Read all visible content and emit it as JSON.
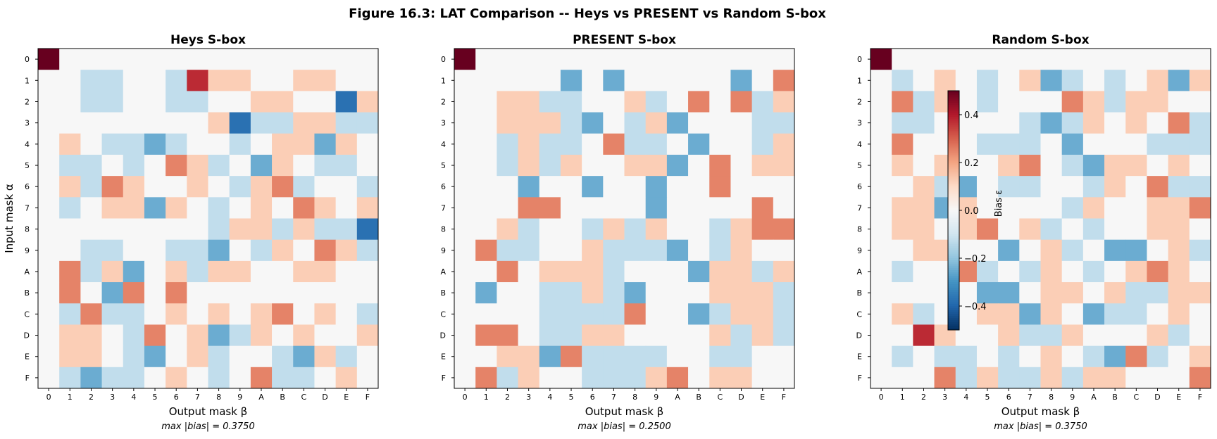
{
  "suptitle": "Figure 16.3: LAT Comparison -- Heys vs PRESENT vs Random S-box",
  "colorbar": {
    "label": "Bias ε",
    "ticks": [
      0.4,
      0.2,
      0.0,
      -0.2,
      -0.4
    ],
    "tick_labels": [
      "0.4",
      "0.2",
      "0.0",
      "−0.2",
      "−0.4"
    ],
    "range": [
      -0.5,
      0.5
    ],
    "colormap": "RdBu_r"
  },
  "chart_data": [
    {
      "type": "heatmap",
      "title": "Heys S-box",
      "xlabel": "Output mask β",
      "ylabel": "Input mask α",
      "annotation": "max |bias| = 0.3750",
      "x_labels": [
        "0",
        "1",
        "2",
        "3",
        "4",
        "5",
        "6",
        "7",
        "8",
        "9",
        "A",
        "B",
        "C",
        "D",
        "E",
        "F"
      ],
      "y_labels": [
        "0",
        "1",
        "2",
        "3",
        "4",
        "5",
        "6",
        "7",
        "8",
        "9",
        "A",
        "B",
        "C",
        "D",
        "E",
        "F"
      ],
      "vrange": [
        -0.5,
        0.5
      ],
      "z": [
        [
          0.5,
          0,
          0,
          0,
          0,
          0,
          0,
          0,
          0,
          0,
          0,
          0,
          0,
          0,
          0,
          0
        ],
        [
          0,
          0,
          -0.125,
          -0.125,
          0,
          0,
          -0.125,
          0.375,
          0.125,
          0.125,
          0,
          0,
          0.125,
          0.125,
          0,
          0
        ],
        [
          0,
          0,
          -0.125,
          -0.125,
          0,
          0,
          -0.125,
          -0.125,
          0,
          0,
          0.125,
          0.125,
          0,
          0,
          -0.375,
          0.125
        ],
        [
          0,
          0,
          0,
          0,
          0,
          0,
          0,
          0,
          0.125,
          -0.375,
          -0.125,
          -0.125,
          0.125,
          0.125,
          -0.125,
          -0.125
        ],
        [
          0,
          0.125,
          0,
          -0.125,
          -0.125,
          -0.25,
          -0.125,
          0,
          0,
          -0.125,
          0,
          0.125,
          0.125,
          -0.25,
          0.125,
          0
        ],
        [
          0,
          -0.125,
          -0.125,
          0,
          -0.125,
          0,
          0.25,
          0.125,
          -0.125,
          0,
          -0.25,
          0.125,
          0,
          -0.125,
          -0.125,
          0
        ],
        [
          0,
          0.125,
          -0.125,
          0.25,
          0.125,
          0,
          0,
          0.125,
          0,
          -0.125,
          0.125,
          0.25,
          -0.125,
          0,
          0,
          -0.125
        ],
        [
          0,
          -0.125,
          0,
          0.125,
          0.125,
          -0.25,
          0.125,
          0,
          -0.125,
          0,
          0.125,
          0,
          0.25,
          0.125,
          0,
          0.125
        ],
        [
          0,
          0,
          0,
          0,
          0,
          0,
          0,
          0,
          -0.125,
          0.125,
          0.125,
          -0.125,
          0.125,
          -0.125,
          -0.125,
          -0.375
        ],
        [
          0,
          0,
          -0.125,
          -0.125,
          0,
          0,
          -0.125,
          -0.125,
          -0.25,
          0,
          -0.125,
          0.125,
          0,
          0.25,
          0.125,
          -0.125
        ],
        [
          0,
          0.25,
          -0.125,
          0.125,
          -0.25,
          0,
          0.125,
          -0.125,
          0.125,
          0.125,
          0,
          0,
          0.125,
          0.125,
          0,
          0
        ],
        [
          0,
          0.25,
          0,
          -0.25,
          0.25,
          0,
          0.25,
          0,
          0,
          0,
          0,
          0,
          0,
          0,
          0,
          0
        ],
        [
          0,
          -0.125,
          0.25,
          -0.125,
          -0.125,
          0,
          0.125,
          0,
          0.125,
          0,
          0.125,
          0.25,
          0,
          0.125,
          0,
          -0.125
        ],
        [
          0,
          0.125,
          0.125,
          0,
          -0.125,
          0.25,
          0,
          0.125,
          -0.25,
          -0.125,
          0.125,
          0,
          0.125,
          0,
          0,
          0.125
        ],
        [
          0,
          0.125,
          0.125,
          0,
          -0.125,
          -0.25,
          0,
          0.125,
          -0.125,
          0,
          0,
          -0.125,
          -0.25,
          0.125,
          -0.125,
          0
        ],
        [
          0,
          -0.125,
          -0.25,
          -0.125,
          -0.125,
          0,
          0.125,
          0,
          -0.125,
          0,
          0.25,
          -0.125,
          -0.125,
          0,
          0.125,
          0
        ]
      ]
    },
    {
      "type": "heatmap",
      "title": "PRESENT S-box",
      "xlabel": "Output mask β",
      "ylabel": "",
      "annotation": "max |bias| = 0.2500",
      "x_labels": [
        "0",
        "1",
        "2",
        "3",
        "4",
        "5",
        "6",
        "7",
        "8",
        "9",
        "A",
        "B",
        "C",
        "D",
        "E",
        "F"
      ],
      "y_labels": [
        "0",
        "1",
        "2",
        "3",
        "4",
        "5",
        "6",
        "7",
        "8",
        "9",
        "A",
        "B",
        "C",
        "D",
        "E",
        "F"
      ],
      "vrange": [
        -0.5,
        0.5
      ],
      "z": [
        [
          0.5,
          0,
          0,
          0,
          0,
          0,
          0,
          0,
          0,
          0,
          0,
          0,
          0,
          0,
          0,
          0
        ],
        [
          0,
          0,
          0,
          0,
          0,
          -0.25,
          0,
          -0.25,
          0,
          0,
          0,
          0,
          0,
          -0.25,
          0,
          0.25
        ],
        [
          0,
          0,
          0.125,
          0.125,
          -0.125,
          -0.125,
          0,
          0,
          0.125,
          -0.125,
          0,
          0.25,
          0,
          0.25,
          -0.125,
          0.125
        ],
        [
          0,
          0,
          0.125,
          0.125,
          0.125,
          -0.125,
          -0.25,
          0,
          -0.125,
          0.125,
          -0.25,
          0,
          0,
          0,
          -0.125,
          -0.125
        ],
        [
          0,
          0,
          -0.125,
          0.125,
          -0.125,
          -0.125,
          0,
          0.25,
          -0.125,
          -0.125,
          0,
          -0.25,
          0,
          0,
          -0.125,
          0.125
        ],
        [
          0,
          0,
          -0.125,
          0.125,
          -0.125,
          0.125,
          0,
          0,
          0.125,
          0.125,
          -0.25,
          0,
          0.25,
          0,
          0.125,
          0.125
        ],
        [
          0,
          0,
          0,
          -0.25,
          0,
          0,
          -0.25,
          0,
          0,
          -0.25,
          0,
          0,
          0.25,
          0,
          0,
          0
        ],
        [
          0,
          0,
          0,
          0.25,
          0.25,
          0,
          0,
          0,
          0,
          -0.25,
          0,
          0,
          0,
          0,
          0.25,
          0
        ],
        [
          0,
          0,
          0.125,
          -0.125,
          0,
          0,
          -0.125,
          0.125,
          -0.125,
          0.125,
          0,
          0,
          -0.125,
          0.125,
          0.25,
          0.25
        ],
        [
          0,
          0.25,
          -0.125,
          -0.125,
          0,
          0,
          0.125,
          -0.125,
          -0.125,
          -0.125,
          -0.25,
          0,
          -0.125,
          0.125,
          0,
          0
        ],
        [
          0,
          0,
          0.25,
          0,
          0.125,
          0.125,
          0.125,
          -0.125,
          0,
          0,
          0,
          -0.25,
          0.125,
          0.125,
          -0.125,
          0.125
        ],
        [
          0,
          -0.25,
          0,
          0,
          -0.125,
          -0.125,
          0.125,
          -0.125,
          -0.25,
          0,
          0,
          0,
          0.125,
          0.125,
          0.125,
          -0.125
        ],
        [
          0,
          0,
          0,
          0,
          -0.125,
          -0.125,
          -0.125,
          -0.125,
          0.25,
          0,
          0,
          -0.25,
          -0.125,
          0.125,
          0.125,
          -0.125
        ],
        [
          0,
          0.25,
          0.25,
          0,
          -0.125,
          -0.125,
          0.125,
          0.125,
          0,
          0,
          0,
          0,
          0.125,
          -0.125,
          0.125,
          -0.125
        ],
        [
          0,
          0,
          0.125,
          0.125,
          -0.25,
          0.25,
          -0.125,
          -0.125,
          -0.125,
          -0.125,
          0,
          0,
          -0.125,
          -0.125,
          0,
          0
        ],
        [
          0,
          0.25,
          -0.125,
          0.125,
          0,
          0,
          -0.125,
          -0.125,
          -0.125,
          0.125,
          0.25,
          0,
          0.125,
          0.125,
          0,
          0
        ]
      ]
    },
    {
      "type": "heatmap",
      "title": "Random S-box",
      "xlabel": "Output mask β",
      "ylabel": "",
      "annotation": "max |bias| = 0.3750",
      "x_labels": [
        "0",
        "1",
        "2",
        "3",
        "4",
        "5",
        "6",
        "7",
        "8",
        "9",
        "A",
        "B",
        "C",
        "D",
        "E",
        "F"
      ],
      "y_labels": [
        "0",
        "1",
        "2",
        "3",
        "4",
        "5",
        "6",
        "7",
        "8",
        "9",
        "A",
        "B",
        "C",
        "D",
        "E",
        "F"
      ],
      "vrange": [
        -0.5,
        0.5
      ],
      "z": [
        [
          0.5,
          0,
          0,
          0,
          0,
          0,
          0,
          0,
          0,
          0,
          0,
          0,
          0,
          0,
          0,
          0
        ],
        [
          0,
          -0.125,
          0,
          0.125,
          0,
          -0.125,
          0,
          0.125,
          -0.25,
          -0.125,
          0,
          -0.125,
          0,
          0.125,
          -0.25,
          0.125
        ],
        [
          0,
          0.25,
          -0.125,
          0.125,
          0,
          -0.125,
          0,
          0,
          0,
          0.25,
          0.125,
          -0.125,
          0.125,
          0.125,
          0,
          0
        ],
        [
          0,
          -0.125,
          -0.125,
          0,
          0,
          0,
          0,
          -0.125,
          -0.25,
          -0.125,
          0.125,
          0,
          0.125,
          0,
          0.25,
          -0.125
        ],
        [
          0,
          0.25,
          0,
          0,
          0,
          -0.125,
          -0.125,
          -0.125,
          0,
          -0.25,
          0,
          0,
          0,
          -0.125,
          -0.125,
          -0.125
        ],
        [
          0,
          0.125,
          0,
          0.125,
          0,
          0,
          0.125,
          0.25,
          0,
          -0.125,
          -0.25,
          0.125,
          0.125,
          0,
          0.125,
          0
        ],
        [
          0,
          0,
          0.125,
          -0.125,
          -0.25,
          0,
          -0.125,
          -0.125,
          0,
          0,
          -0.125,
          0.125,
          0,
          0.25,
          -0.125,
          -0.125
        ],
        [
          0,
          0.125,
          0.125,
          -0.25,
          0.125,
          0,
          0,
          0,
          0,
          -0.125,
          0.125,
          0,
          0,
          0.125,
          0.125,
          0.25
        ],
        [
          0,
          0.125,
          0.125,
          0,
          0.125,
          0.25,
          0,
          0.125,
          -0.125,
          0,
          -0.125,
          0,
          0,
          0.125,
          0.125,
          0
        ],
        [
          0,
          0,
          0.125,
          0.125,
          0,
          0,
          -0.25,
          0,
          0.125,
          -0.125,
          0,
          -0.25,
          -0.25,
          0,
          0.125,
          -0.125
        ],
        [
          0,
          -0.125,
          0,
          0,
          0.25,
          -0.125,
          0,
          -0.125,
          0.125,
          0,
          -0.125,
          0,
          0.125,
          0.25,
          0.125,
          0
        ],
        [
          0,
          0,
          0,
          0,
          0,
          -0.25,
          -0.25,
          0,
          0.125,
          0.125,
          0,
          0.125,
          -0.125,
          -0.125,
          0.125,
          0.125
        ],
        [
          0,
          0.125,
          -0.125,
          0,
          0,
          0.125,
          0.125,
          -0.25,
          0.125,
          0,
          -0.25,
          -0.125,
          -0.125,
          0,
          0.125,
          0
        ],
        [
          0,
          0,
          0.375,
          0.125,
          0,
          0,
          0.125,
          -0.125,
          -0.125,
          0.125,
          0,
          0,
          0,
          0.125,
          -0.125,
          0
        ],
        [
          0,
          -0.125,
          0,
          -0.125,
          -0.125,
          0,
          -0.125,
          0,
          0.125,
          0,
          -0.125,
          -0.25,
          0.25,
          -0.125,
          0,
          0.125
        ],
        [
          0,
          0,
          0,
          0.25,
          -0.125,
          0.125,
          -0.125,
          -0.125,
          0.125,
          -0.125,
          0.125,
          0.125,
          0,
          0,
          0,
          0.25
        ]
      ]
    }
  ]
}
